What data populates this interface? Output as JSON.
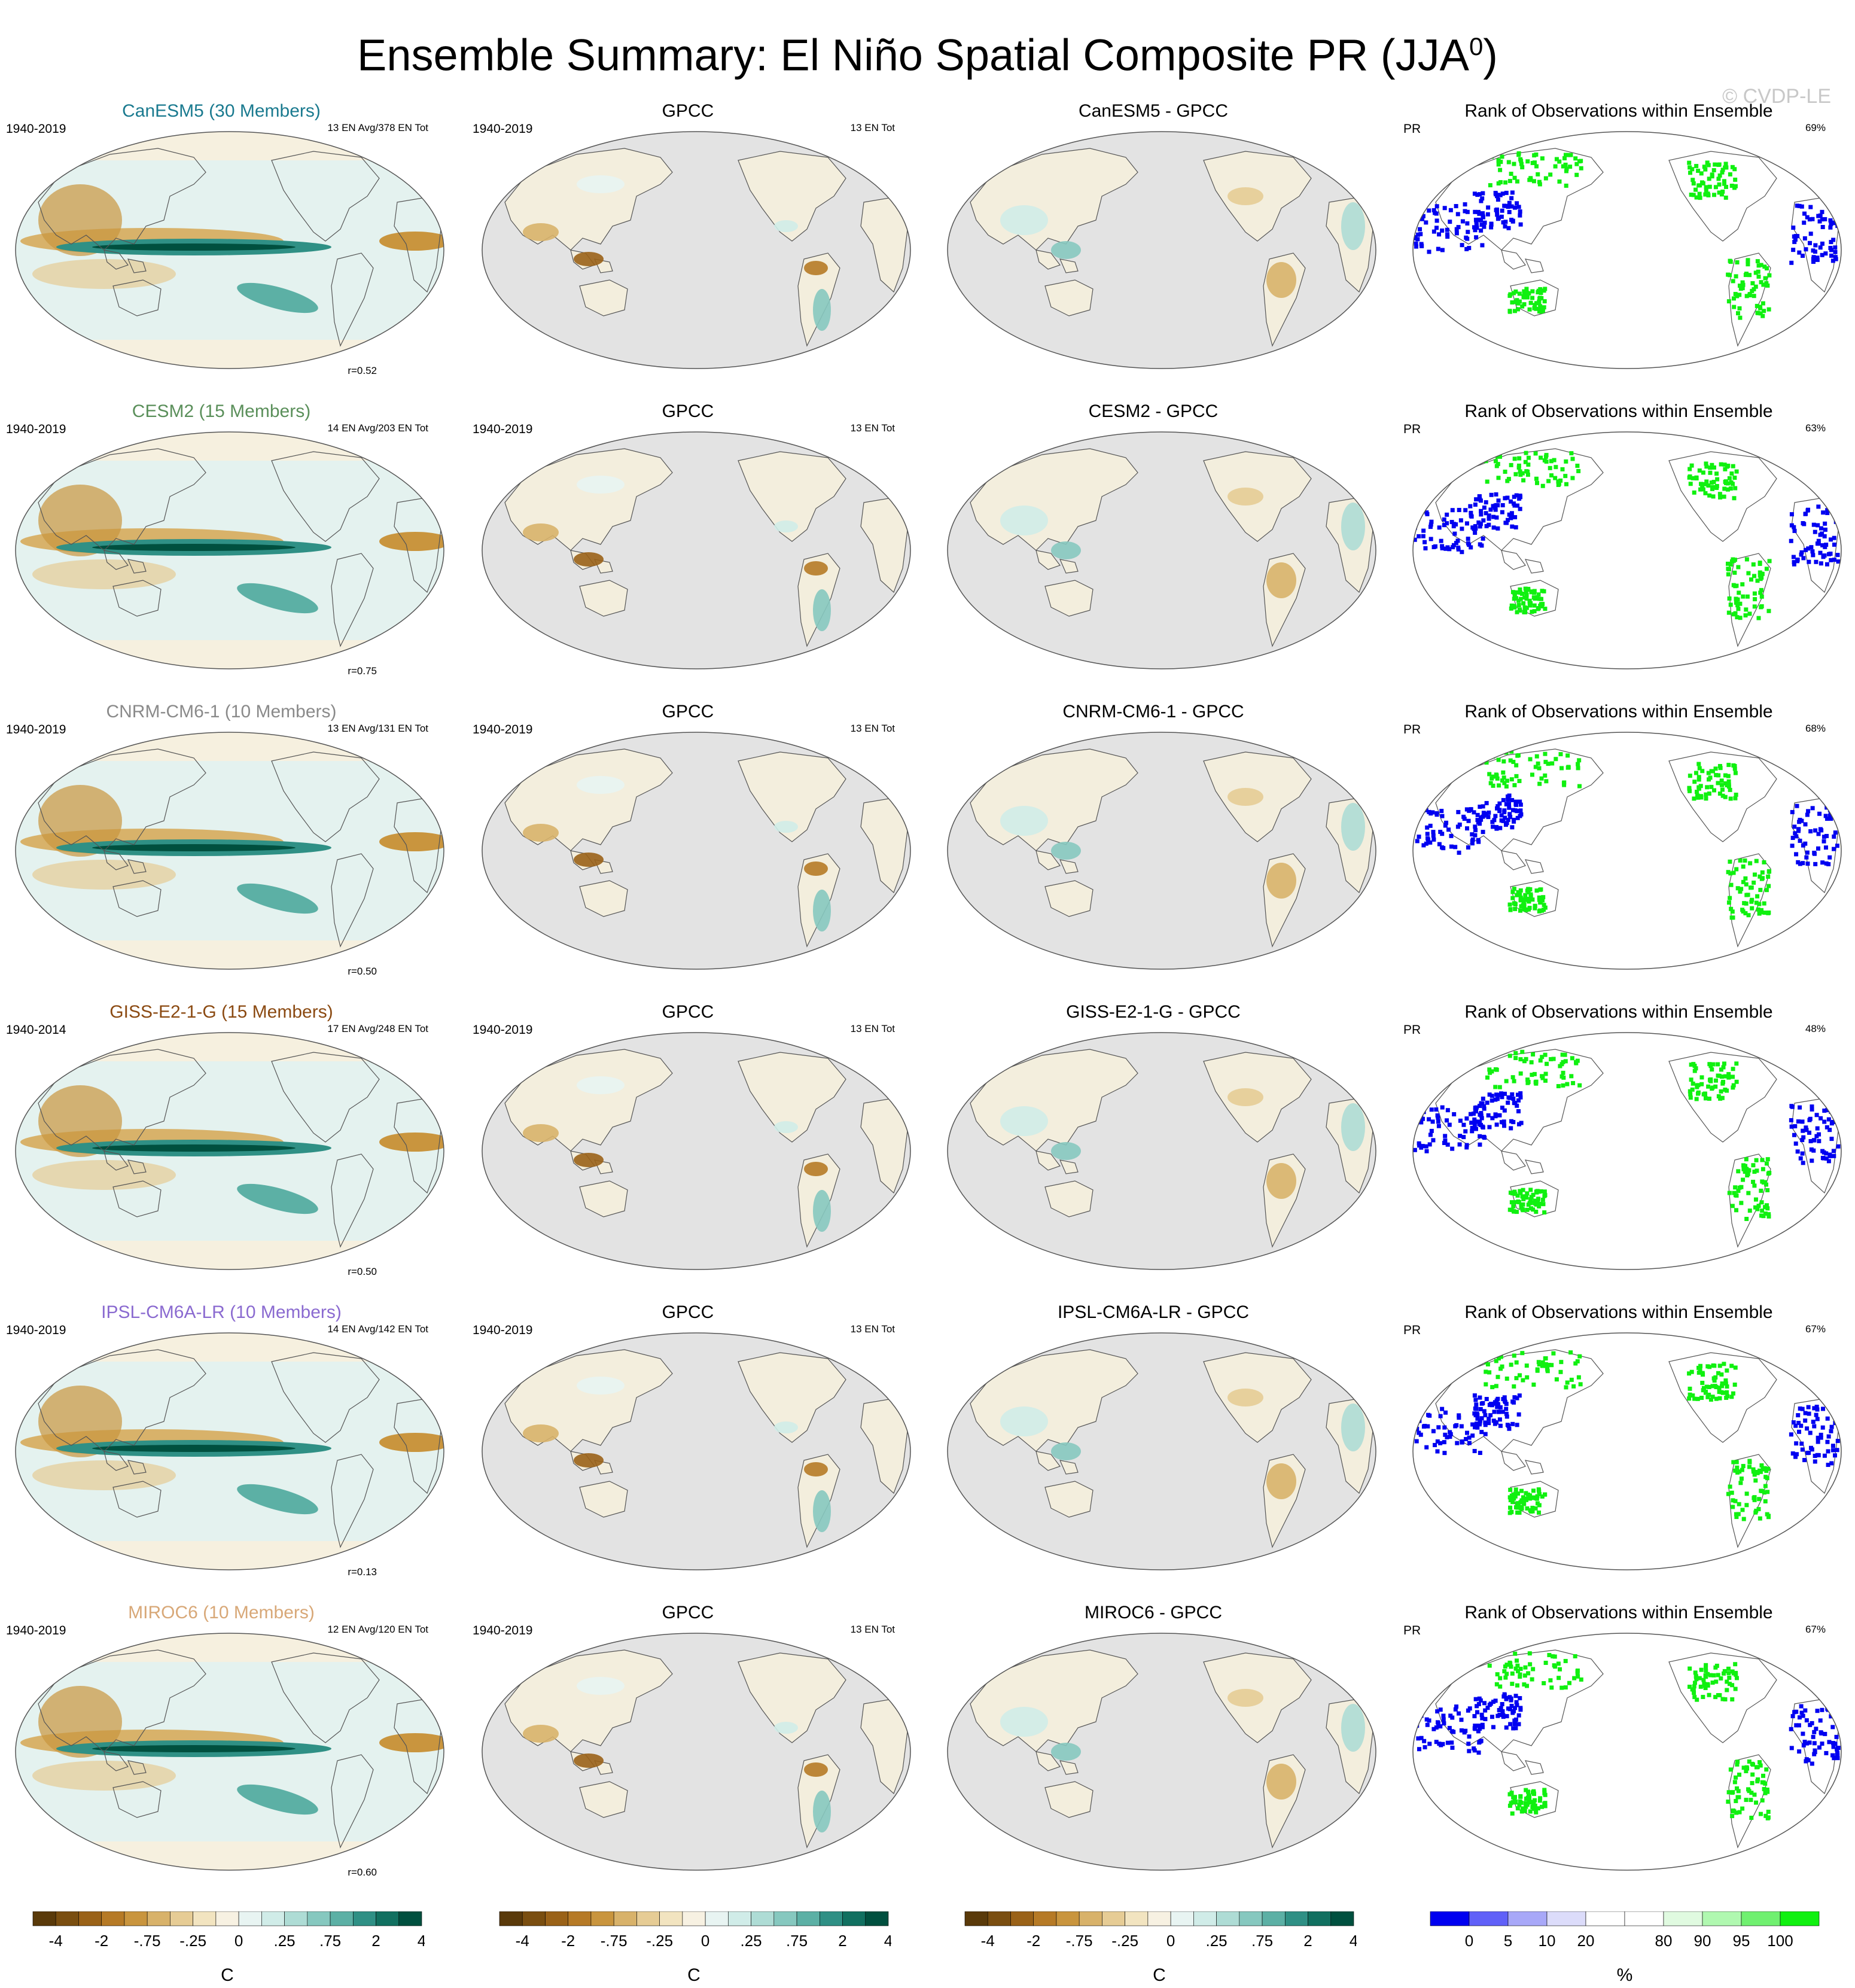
{
  "title": {
    "main": "Ensemble Summary: El Niño Spatial Composite PR (JJA",
    "superscript": "0",
    "close": ")"
  },
  "watermark": "© CVDP-LE",
  "rows": [
    {
      "model_title": "CanESM5 (30 Members)",
      "model_color": "#1a7a8f",
      "period": "1940-2019",
      "count_label": "13 EN Avg/378 EN Tot",
      "correlation": "r=0.52",
      "obs_title": "GPCC",
      "obs_period": "1940-2019",
      "obs_count": "13 EN Tot",
      "diff_title": "CanESM5 - GPCC",
      "rank_title": "Rank of Observations within Ensemble",
      "rank_var": "PR",
      "rank_pct": "69%"
    },
    {
      "model_title": "CESM2 (15 Members)",
      "model_color": "#5a8f5a",
      "period": "1940-2019",
      "count_label": "14 EN Avg/203 EN Tot",
      "correlation": "r=0.75",
      "obs_title": "GPCC",
      "obs_period": "1940-2019",
      "obs_count": "13 EN Tot",
      "diff_title": "CESM2 - GPCC",
      "rank_title": "Rank of Observations within Ensemble",
      "rank_var": "PR",
      "rank_pct": "63%"
    },
    {
      "model_title": "CNRM-CM6-1 (10 Members)",
      "model_color": "#8a8a8a",
      "period": "1940-2019",
      "count_label": "13 EN Avg/131 EN Tot",
      "correlation": "r=0.50",
      "obs_title": "GPCC",
      "obs_period": "1940-2019",
      "obs_count": "13 EN Tot",
      "diff_title": "CNRM-CM6-1 - GPCC",
      "rank_title": "Rank of Observations within Ensemble",
      "rank_var": "PR",
      "rank_pct": "68%"
    },
    {
      "model_title": "GISS-E2-1-G (15 Members)",
      "model_color": "#8b4a12",
      "period": "1940-2014",
      "count_label": "17 EN Avg/248 EN Tot",
      "correlation": "r=0.50",
      "obs_title": "GPCC",
      "obs_period": "1940-2019",
      "obs_count": "13 EN Tot",
      "diff_title": "GISS-E2-1-G - GPCC",
      "rank_title": "Rank of Observations within Ensemble",
      "rank_var": "PR",
      "rank_pct": "48%"
    },
    {
      "model_title": "IPSL-CM6A-LR (10 Members)",
      "model_color": "#8a6ad0",
      "period": "1940-2019",
      "count_label": "14 EN Avg/142 EN Tot",
      "correlation": "r=0.13",
      "obs_title": "GPCC",
      "obs_period": "1940-2019",
      "obs_count": "13 EN Tot",
      "diff_title": "IPSL-CM6A-LR - GPCC",
      "rank_title": "Rank of Observations within Ensemble",
      "rank_var": "PR",
      "rank_pct": "67%"
    },
    {
      "model_title": "MIROC6 (10 Members)",
      "model_color": "#d8a878",
      "period": "1940-2019",
      "count_label": "12 EN Avg/120 EN Tot",
      "correlation": "r=0.60",
      "obs_title": "GPCC",
      "obs_period": "1940-2019",
      "obs_count": "13 EN Tot",
      "diff_title": "MIROC6 - GPCC",
      "rank_title": "Rank of Observations within Ensemble",
      "rank_var": "PR",
      "rank_pct": "67%"
    }
  ],
  "colorbars": {
    "diverging": {
      "colors": [
        "#5a3a0a",
        "#7a4e10",
        "#9a6218",
        "#b67a26",
        "#c9953e",
        "#d8b26a",
        "#e6cc95",
        "#f2e4c0",
        "#f7f1e2",
        "#e8f4f2",
        "#d0ece8",
        "#aedcd5",
        "#86c8bf",
        "#5cb0a5",
        "#2f9085",
        "#117060",
        "#00503f"
      ],
      "ticks": [
        "-4",
        "-2",
        "-.75",
        "-.25",
        "0",
        ".25",
        ".75",
        "2",
        "4"
      ],
      "unit": "C"
    },
    "rank": {
      "colors": [
        "#0000f0",
        "#6060f8",
        "#a8a8f8",
        "#dcdcfa",
        "#ffffff",
        "#ffffff",
        "#e0fae0",
        "#b0f8b0",
        "#70f070",
        "#10f010"
      ],
      "ticks": [
        "0",
        "5",
        "10",
        "20",
        "80",
        "90",
        "95",
        "100"
      ],
      "unit": "%"
    }
  }
}
